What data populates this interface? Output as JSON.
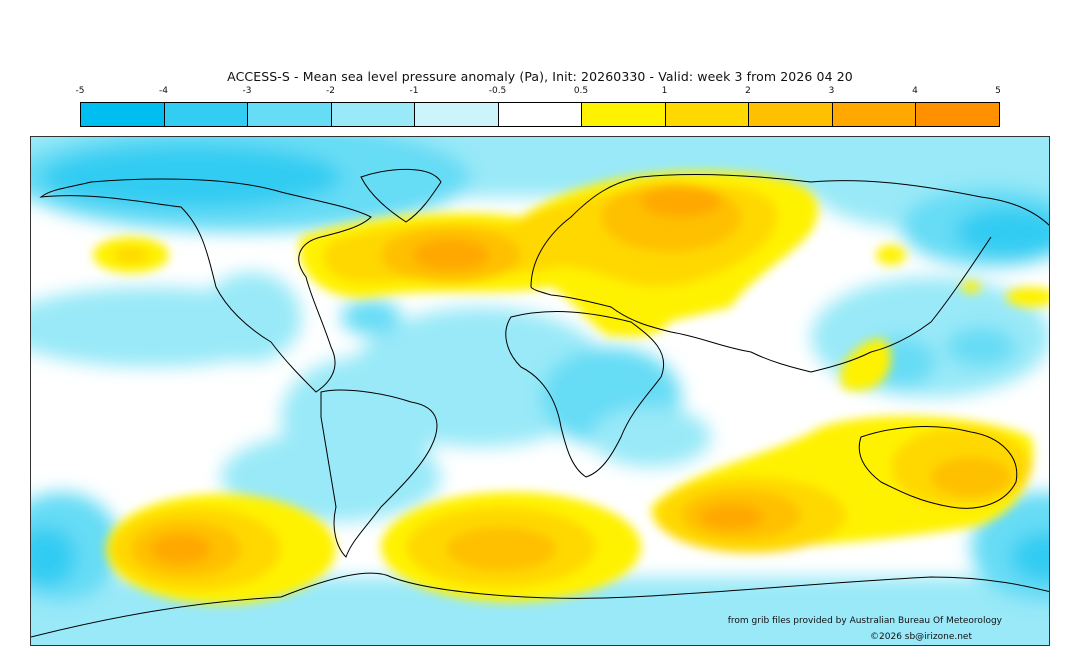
{
  "map": {
    "title": "ACCESS-S - Mean sea level pressure anomaly (Pa), Init: 20260330 - Valid: week 3 from 2026 04 20",
    "legend": {
      "ticks": [
        "-5",
        "-4",
        "-3",
        "-2",
        "-1",
        "-0.5",
        "0.5",
        "1",
        "2",
        "3",
        "4",
        "5"
      ],
      "colors": [
        "#00bff0",
        "#33ccf2",
        "#66dcf5",
        "#99e9f8",
        "#ccf5fb",
        "#ffffff",
        "#fff200",
        "#ffd800",
        "#ffc000",
        "#ffa800",
        "#ff9000"
      ]
    },
    "credit": "from grib files provided by Australian Bureau Of Meteorology",
    "copyright": "©2026 sb@irizone.net"
  }
}
